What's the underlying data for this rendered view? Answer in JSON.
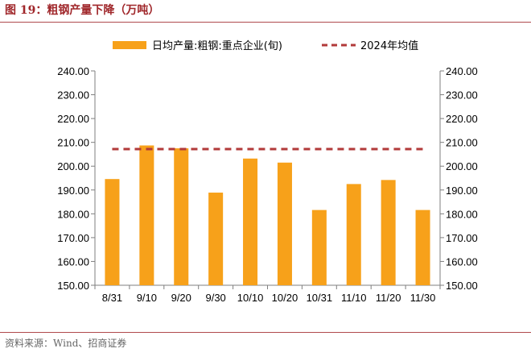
{
  "header": {
    "title": "图 19：粗钢产量下降（万吨）"
  },
  "footer": {
    "source": "资料来源：Wind、招商证券"
  },
  "colors": {
    "bar": "#f7a11a",
    "avg_line": "#b23a3a",
    "title": "#a0272b"
  },
  "chart_data": {
    "type": "bar",
    "categories": [
      "8/31",
      "9/10",
      "9/20",
      "9/30",
      "10/10",
      "10/20",
      "10/31",
      "11/10",
      "11/20",
      "11/30"
    ],
    "series": [
      {
        "name": "日均产量:粗钢:重点企业(旬)",
        "type": "bar",
        "values": [
          194.6,
          208.7,
          207.5,
          188.9,
          203.2,
          201.5,
          181.6,
          192.5,
          194.2,
          181.6
        ]
      },
      {
        "name": "2024年均值",
        "type": "line-dashed",
        "values": [
          207.2,
          207.2,
          207.2,
          207.2,
          207.2,
          207.2,
          207.2,
          207.2,
          207.2,
          207.2
        ]
      }
    ],
    "ylim": [
      150,
      240
    ],
    "yticks": [
      "150.00",
      "160.00",
      "170.00",
      "180.00",
      "190.00",
      "200.00",
      "210.00",
      "220.00",
      "230.00",
      "240.00"
    ],
    "secondary_yticks": [
      "150.00",
      "160.00",
      "170.00",
      "180.00",
      "190.00",
      "200.00",
      "210.00",
      "220.00",
      "230.00",
      "240.00"
    ],
    "grid": false,
    "legend": "top"
  }
}
